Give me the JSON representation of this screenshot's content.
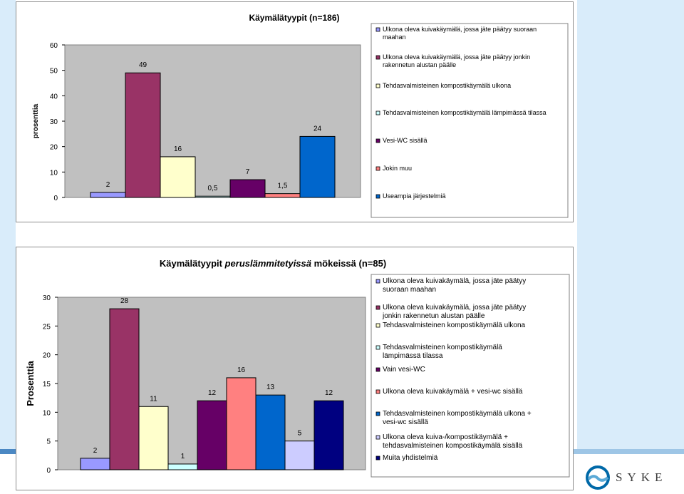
{
  "chart_data": [
    {
      "type": "bar",
      "title": "Käymälätyypit (n=186)",
      "title_parts": [],
      "ylabel": "prosenttia",
      "ylim": [
        0,
        60
      ],
      "yticks": [
        0,
        10,
        20,
        30,
        40,
        50,
        60
      ],
      "grid": false,
      "plot_background": "#c0c0c0",
      "legend_position": "right",
      "series": [
        {
          "name": "Ulkona oleva kuivakäymälä, jossa jäte päätyy suoraan maahan",
          "value": 2,
          "label": "2",
          "color": "#9999ff"
        },
        {
          "name": "Ulkona oleva kuivakäymälä, jossa jäte päätyy jonkin rakennetun alustan päälle",
          "value": 49,
          "label": "49",
          "color": "#993366"
        },
        {
          "name": "Tehdasvalmisteinen kompostikäymälä ulkona",
          "value": 16,
          "label": "16",
          "color": "#ffffcc"
        },
        {
          "name": "Tehdasvalmisteinen kompostikäymälä lämpimässä tilassa",
          "value": 0.5,
          "label": "0,5",
          "color": "#ccffff"
        },
        {
          "name": "Vesi-WC sisällä",
          "value": 7,
          "label": "7",
          "color": "#660066"
        },
        {
          "name": "Jokin muu",
          "value": 1.5,
          "label": "1,5",
          "color": "#ff8080"
        },
        {
          "name": "Useampia järjestelmiä",
          "value": 24,
          "label": "24",
          "color": "#0066cc"
        }
      ]
    },
    {
      "type": "bar",
      "title": "",
      "title_parts": [
        {
          "text": "Käymälätyypit ",
          "italic": false
        },
        {
          "text": "peruslämmitetyissä",
          "italic": true
        },
        {
          "text": " mökeissä (n=85)",
          "italic": false
        }
      ],
      "ylabel": "Prosenttia",
      "ylim": [
        0,
        30
      ],
      "yticks": [
        0,
        5,
        10,
        15,
        20,
        25,
        30
      ],
      "grid": false,
      "plot_background": "#c0c0c0",
      "legend_position": "right",
      "series": [
        {
          "name": "Ulkona oleva kuivakäymälä, jossa jäte päätyy suoraan maahan",
          "value": 2,
          "label": "2",
          "color": "#9999ff"
        },
        {
          "name": "Ulkona oleva kuivakäymälä, jossa jäte päätyy jonkin rakennetun alustan päälle",
          "value": 28,
          "label": "28",
          "color": "#993366"
        },
        {
          "name": "Tehdasvalmisteinen kompostikäymälä ulkona",
          "value": 11,
          "label": "11",
          "color": "#ffffcc"
        },
        {
          "name": "Tehdasvalmisteinen kompostikäymälä lämpimässä tilassa",
          "value": 1,
          "label": "1",
          "color": "#ccffff"
        },
        {
          "name": "Vain vesi-WC",
          "value": 12,
          "label": "12",
          "color": "#660066"
        },
        {
          "name": "Ulkona oleva kuivakäymälä + vesi-wc sisällä",
          "value": 16,
          "label": "16",
          "color": "#ff8080"
        },
        {
          "name": "Tehdasvalmisteinen kompostikäymälä ulkona + vesi-wc sisällä",
          "value": 13,
          "label": "13",
          "color": "#0066cc"
        },
        {
          "name": "Ulkona oleva kuiva-/kompostikäymälä + tehdasvalmisteinen kompostikäymälä sisällä",
          "value": 5,
          "label": "5",
          "color": "#ccccff"
        },
        {
          "name": "Muita yhdistelmiä",
          "value": 12,
          "label": "12",
          "color": "#000080"
        }
      ]
    }
  ],
  "logo": {
    "text": "SYKE",
    "ring_color": "#0069a8",
    "wave_color": "#5aa9d6"
  }
}
